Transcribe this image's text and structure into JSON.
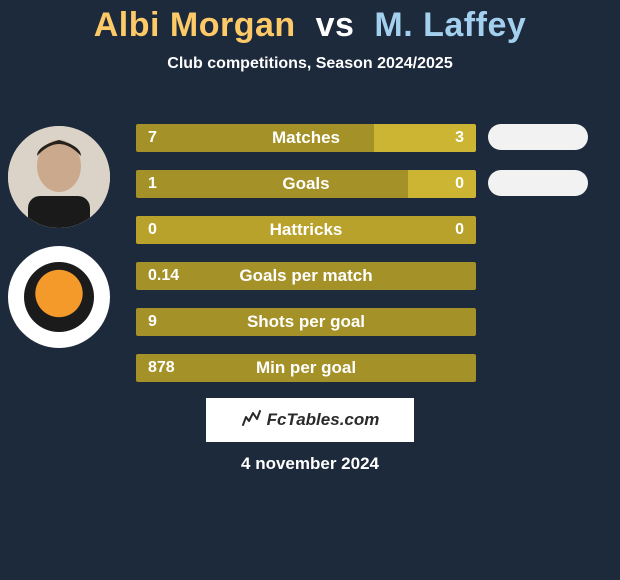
{
  "colors": {
    "background": "#1d2a3c",
    "player1_accent": "#fec967",
    "player2_accent": "#a3d0ee",
    "seg_player1": "#a49127",
    "seg_player2": "#ccb532",
    "seg_midtone": "#b8a22c",
    "text_white": "#ffffff",
    "pill_bg": "#f2f2f2",
    "brand_bg": "#ffffff",
    "brand_text": "#2b2b2b"
  },
  "header": {
    "player1": "Albi Morgan",
    "vs": "vs",
    "player2": "M. Laffey",
    "subtitle": "Club competitions, Season 2024/2025"
  },
  "stats": {
    "row_width": 340,
    "rows": [
      {
        "label": "Matches",
        "left": "7",
        "right": "3",
        "left_pct": 70,
        "left_color": "#a49127",
        "right_color": "#ccb532"
      },
      {
        "label": "Goals",
        "left": "1",
        "right": "0",
        "left_pct": 80,
        "left_color": "#a49127",
        "right_color": "#ccb532"
      },
      {
        "label": "Hattricks",
        "left": "0",
        "right": "0",
        "left_pct": 100,
        "left_color": "#b8a22c",
        "right_color": "#b8a22c"
      },
      {
        "label": "Goals per match",
        "left": "0.14",
        "right": "",
        "left_pct": 100,
        "left_color": "#a49127",
        "right_color": "#a49127"
      },
      {
        "label": "Shots per goal",
        "left": "9",
        "right": "",
        "left_pct": 100,
        "left_color": "#a49127",
        "right_color": "#a49127"
      },
      {
        "label": "Min per goal",
        "left": "878",
        "right": "",
        "left_pct": 100,
        "left_color": "#a49127",
        "right_color": "#a49127"
      }
    ]
  },
  "pills_count": 2,
  "branding": {
    "label": "FcTables.com"
  },
  "date": "4 november 2024"
}
